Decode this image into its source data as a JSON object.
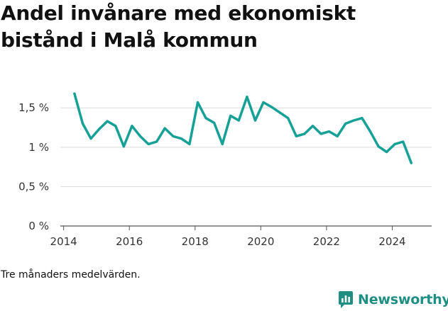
{
  "title": "Andel invånare med ekonomiskt bistånd i Malå kommun",
  "footnote": "Tre månaders medelvärden.",
  "brand": {
    "name": "Newsworthy",
    "color": "#1f8f84"
  },
  "chart_data": {
    "type": "line",
    "title": "Andel invånare med ekonomiskt bistånd i Malå kommun",
    "xlabel": "",
    "ylabel": "",
    "xlim": [
      2013.9,
      2025.2
    ],
    "ylim": [
      0,
      1.7
    ],
    "x_ticks": [
      {
        "value": 2014,
        "label": "2014"
      },
      {
        "value": 2016,
        "label": "2016"
      },
      {
        "value": 2018,
        "label": "2018"
      },
      {
        "value": 2020,
        "label": "2020"
      },
      {
        "value": 2022,
        "label": "2022"
      },
      {
        "value": 2024,
        "label": "2024"
      }
    ],
    "y_ticks": [
      {
        "value": 0,
        "label": "0 %"
      },
      {
        "value": 0.5,
        "label": "0,5 %"
      },
      {
        "value": 1,
        "label": "1 %"
      },
      {
        "value": 1.5,
        "label": "1,5 %"
      }
    ],
    "grid": true,
    "line_color": "#17a196",
    "series": [
      {
        "x": [
          2014.33,
          2014.58,
          2014.83,
          2015.08,
          2015.33,
          2015.58,
          2015.83,
          2016.08,
          2016.33,
          2016.58,
          2016.83,
          2017.08,
          2017.33,
          2017.58,
          2017.83,
          2018.08,
          2018.33,
          2018.58,
          2018.83,
          2019.08,
          2019.33,
          2019.58,
          2019.83,
          2020.08,
          2020.33,
          2020.58,
          2020.83,
          2021.08,
          2021.33,
          2021.58,
          2021.83,
          2022.08,
          2022.33,
          2022.58,
          2022.83,
          2023.08,
          2023.33,
          2023.58,
          2023.83,
          2024.08,
          2024.33,
          2024.58
        ],
        "y": [
          1.68,
          1.3,
          1.11,
          1.23,
          1.33,
          1.27,
          1.01,
          1.27,
          1.14,
          1.04,
          1.07,
          1.24,
          1.14,
          1.11,
          1.04,
          1.57,
          1.37,
          1.31,
          1.04,
          1.4,
          1.34,
          1.64,
          1.34,
          1.57,
          1.51,
          1.44,
          1.37,
          1.14,
          1.17,
          1.27,
          1.17,
          1.2,
          1.14,
          1.3,
          1.34,
          1.37,
          1.2,
          1.01,
          0.94,
          1.04,
          1.07,
          0.8
        ]
      }
    ]
  }
}
